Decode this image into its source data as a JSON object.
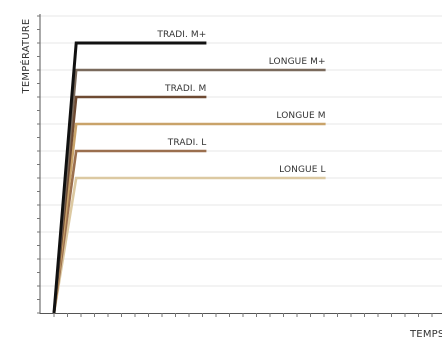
{
  "chart_data": {
    "type": "line",
    "title": "",
    "xlabel": "TEMPS",
    "ylabel": "TEMPÉRATURE",
    "xlim": [
      0,
      14
    ],
    "ylim": [
      0,
      10
    ],
    "grid": true,
    "legend": "labels at line ends",
    "series": [
      {
        "name": "TRADI. M+",
        "color": "#111111",
        "points": [
          [
            0,
            0
          ],
          [
            0.8,
            10
          ],
          [
            5.5,
            10
          ]
        ]
      },
      {
        "name": "LONGUE M+",
        "color": "#7a6a5c",
        "points": [
          [
            0,
            0
          ],
          [
            0.8,
            9
          ],
          [
            9.8,
            9
          ]
        ]
      },
      {
        "name": "TRADI. M",
        "color": "#6e4a32",
        "points": [
          [
            0,
            0
          ],
          [
            0.8,
            8
          ],
          [
            5.5,
            8
          ]
        ]
      },
      {
        "name": "LONGUE M",
        "color": "#c9a36a",
        "points": [
          [
            0,
            0
          ],
          [
            0.8,
            7
          ],
          [
            9.8,
            7
          ]
        ]
      },
      {
        "name": "TRADI. L",
        "color": "#9b6f4e",
        "points": [
          [
            0,
            0
          ],
          [
            0.8,
            6
          ],
          [
            5.5,
            6
          ]
        ]
      },
      {
        "name": "LONGUE L",
        "color": "#dcc9a2",
        "points": [
          [
            0,
            0
          ],
          [
            0.8,
            5
          ],
          [
            9.8,
            5
          ]
        ]
      }
    ]
  }
}
